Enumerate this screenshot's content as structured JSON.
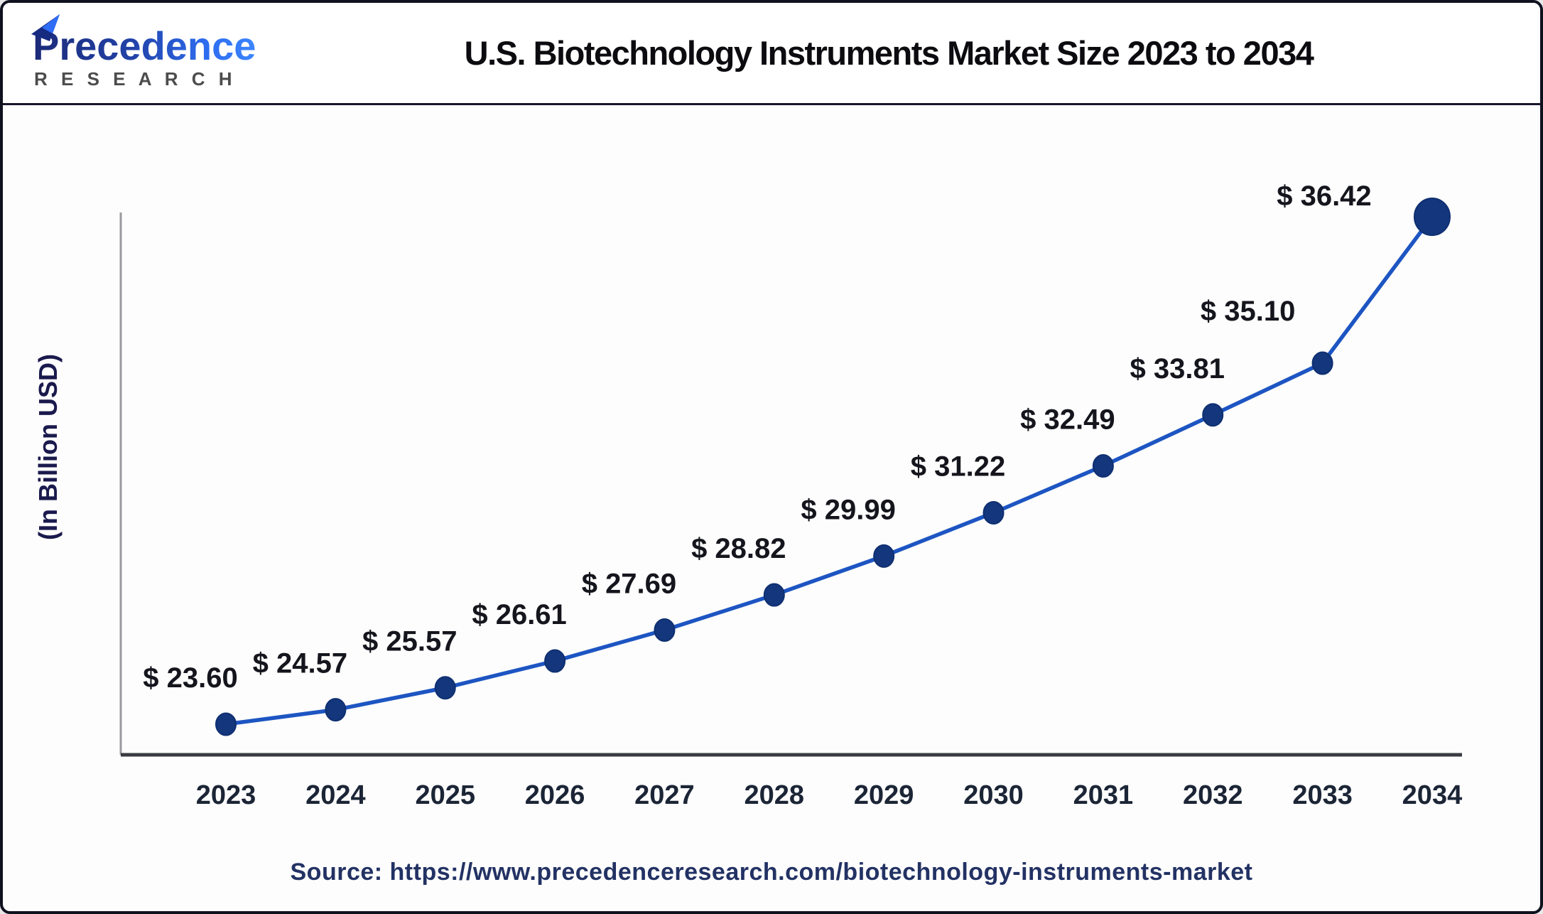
{
  "header": {
    "logo": {
      "brand": "Precedence",
      "subtitle": "R E S E A R C H",
      "icon": "triangle-logo-icon",
      "brand_color_start": "#1b2a78",
      "brand_color_end": "#3c86ff",
      "subtitle_color": "#4c4c4c"
    },
    "title": "U.S. Biotechnology Instruments Market Size 2023 to 2034"
  },
  "chart_data": {
    "type": "line",
    "x_labels": [
      "2023",
      "2024",
      "2025",
      "2026",
      "2027",
      "2028",
      "2029",
      "2030",
      "2031",
      "2032",
      "2033",
      "2034"
    ],
    "x": [
      2023,
      2024,
      2025,
      2026,
      2027,
      2028,
      2029,
      2030,
      2031,
      2032,
      2033,
      2034
    ],
    "values": [
      23.6,
      24.57,
      25.57,
      26.61,
      27.69,
      28.82,
      29.99,
      31.22,
      32.49,
      33.81,
      35.1,
      36.42
    ],
    "value_labels": [
      "$ 23.60",
      "$ 24.57",
      "$ 25.57",
      "$ 26.61",
      "$ 27.69",
      "$ 28.82",
      "$ 29.99",
      "$ 31.22",
      "$ 32.49",
      "$ 33.81",
      "$ 35.10",
      "$ 36.42"
    ],
    "title": "",
    "xlabel": "",
    "ylabel": "(In Billion USD)",
    "ylim": [
      23,
      37
    ],
    "grid": false,
    "legend": false,
    "units": "USD Billion",
    "colors": {
      "line": "#1d55c2",
      "marker": "#13367d",
      "marker_edge": "#0f2f70",
      "value_label": "#15151d",
      "tick_label": "#1b2536",
      "y_axis_line": "#9a9aa0",
      "x_axis_line": "#3a3b42",
      "y_axis_title": "#1a1a4d"
    }
  },
  "footer": {
    "source_text": "Source: https://www.precedenceresearch.com/biotechnology-instruments-market"
  }
}
